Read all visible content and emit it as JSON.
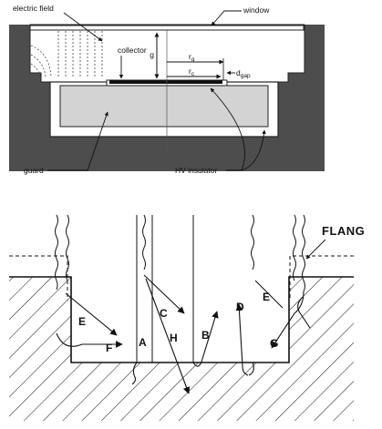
{
  "top_diagram": {
    "labels": {
      "electric_field": "electric field",
      "window": "window",
      "collector": "collector",
      "g": "g",
      "rg": "r",
      "rg_sub": "g",
      "rc": "r",
      "rc_sub": "c",
      "dgap": "d",
      "dgap_sub": "gap",
      "guard": "guard",
      "hv_insulator": "HV insulator"
    }
  },
  "bottom_diagram": {
    "labels": {
      "flange": "FLANG",
      "A": "A",
      "B": "B",
      "C": "C",
      "D": "D",
      "E_left": "E",
      "E_right": "E",
      "F": "F",
      "G": "G",
      "H": "H"
    }
  },
  "colors": {
    "housing": "#4d4d4d",
    "guard_fill": "#d3d3d3",
    "ink": "#111111",
    "background": "#ffffff"
  }
}
